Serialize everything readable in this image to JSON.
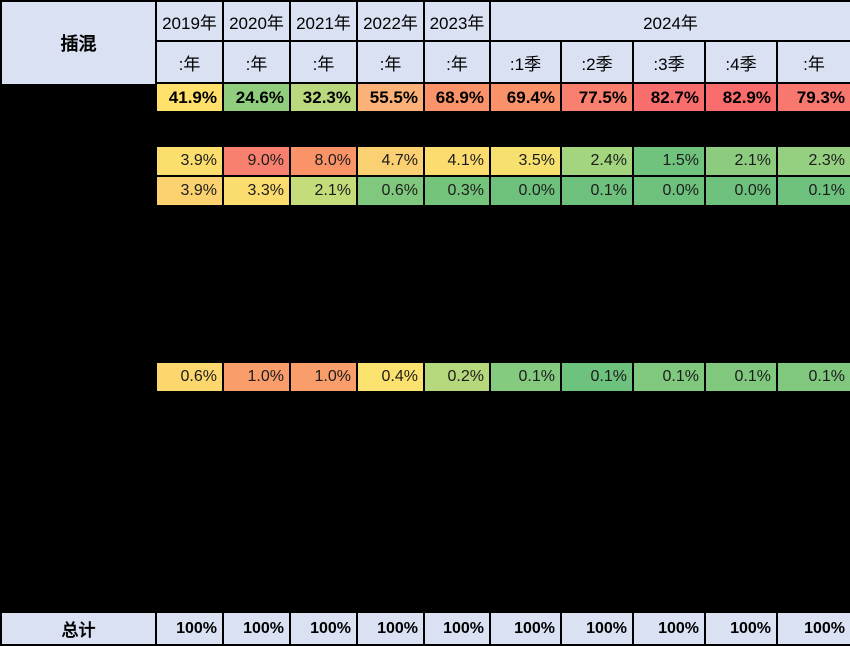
{
  "table": {
    "corner_label": "插混",
    "col_headers": [
      {
        "year": "2019年",
        "sub": ":年"
      },
      {
        "year": "2020年",
        "sub": ":年"
      },
      {
        "year": "2021年",
        "sub": ":年"
      },
      {
        "year": "2022年",
        "sub": ":年"
      },
      {
        "year": "2023年",
        "sub": ":年"
      }
    ],
    "col_group_2024": {
      "year": "2024年",
      "subs": [
        ":1季",
        ":2季",
        ":3季",
        ":4季",
        ":年"
      ]
    },
    "rows": [
      {
        "cells": [
          {
            "text": "41.9%",
            "bg": "#FFE06A"
          },
          {
            "text": "24.6%",
            "bg": "#90CE7E"
          },
          {
            "text": "32.3%",
            "bg": "#BAD97E"
          },
          {
            "text": "55.5%",
            "bg": "#FBB177"
          },
          {
            "text": "68.9%",
            "bg": "#FA9369"
          },
          {
            "text": "69.4%",
            "bg": "#FA9269"
          },
          {
            "text": "77.5%",
            "bg": "#F9806E"
          },
          {
            "text": "82.7%",
            "bg": "#F86E6C"
          },
          {
            "text": "82.9%",
            "bg": "#F86D6B"
          },
          {
            "text": "79.3%",
            "bg": "#F8776F"
          }
        ]
      },
      {
        "cells": [
          {
            "text": "3.9%",
            "bg": "#FCDE6D"
          },
          {
            "text": "9.0%",
            "bg": "#F8806E"
          },
          {
            "text": "8.0%",
            "bg": "#FA9468"
          },
          {
            "text": "4.7%",
            "bg": "#FBD072"
          },
          {
            "text": "4.1%",
            "bg": "#FCDC6E"
          },
          {
            "text": "3.5%",
            "bg": "#F6E16E"
          },
          {
            "text": "2.4%",
            "bg": "#A3D57F"
          },
          {
            "text": "1.5%",
            "bg": "#70C37C"
          },
          {
            "text": "2.1%",
            "bg": "#8DCC7E"
          },
          {
            "text": "2.3%",
            "bg": "#95D080"
          }
        ]
      },
      {
        "cells": [
          {
            "text": "3.9%",
            "bg": "#FBD26F"
          },
          {
            "text": "3.3%",
            "bg": "#FBDC6E"
          },
          {
            "text": "2.1%",
            "bg": "#C4DC79"
          },
          {
            "text": "0.6%",
            "bg": "#80C87D"
          },
          {
            "text": "0.3%",
            "bg": "#74C47C"
          },
          {
            "text": "0.0%",
            "bg": "#6DC17C"
          },
          {
            "text": "0.1%",
            "bg": "#6DC17C"
          },
          {
            "text": "0.0%",
            "bg": "#6DC17C"
          },
          {
            "text": "0.0%",
            "bg": "#6DC17C"
          },
          {
            "text": "0.1%",
            "bg": "#6DC17C"
          }
        ]
      },
      {
        "cells": [
          {
            "text": "0.6%",
            "bg": "#FBD76D"
          },
          {
            "text": "1.0%",
            "bg": "#F99D6B"
          },
          {
            "text": "1.0%",
            "bg": "#F99D6B"
          },
          {
            "text": "0.4%",
            "bg": "#FBE16D"
          },
          {
            "text": "0.2%",
            "bg": "#B6D87D"
          },
          {
            "text": "0.1%",
            "bg": "#84CA7F"
          },
          {
            "text": "0.1%",
            "bg": "#6DC27D"
          },
          {
            "text": "0.1%",
            "bg": "#80C87D"
          },
          {
            "text": "0.1%",
            "bg": "#80C87D"
          },
          {
            "text": "0.1%",
            "bg": "#80C87D"
          }
        ]
      }
    ],
    "footer_label": "总计",
    "footer_values": [
      "100%",
      "100%",
      "100%",
      "100%",
      "100%",
      "100%",
      "100%",
      "100%",
      "100%",
      "100%"
    ]
  },
  "colors": {
    "header_bg": "#D9E1F2",
    "grid": "#000000",
    "redacted_bg": "#000000",
    "scale_min_green": "#63BE7B",
    "scale_mid_yellow": "#FFEB84",
    "scale_max_red": "#F8696B"
  }
}
